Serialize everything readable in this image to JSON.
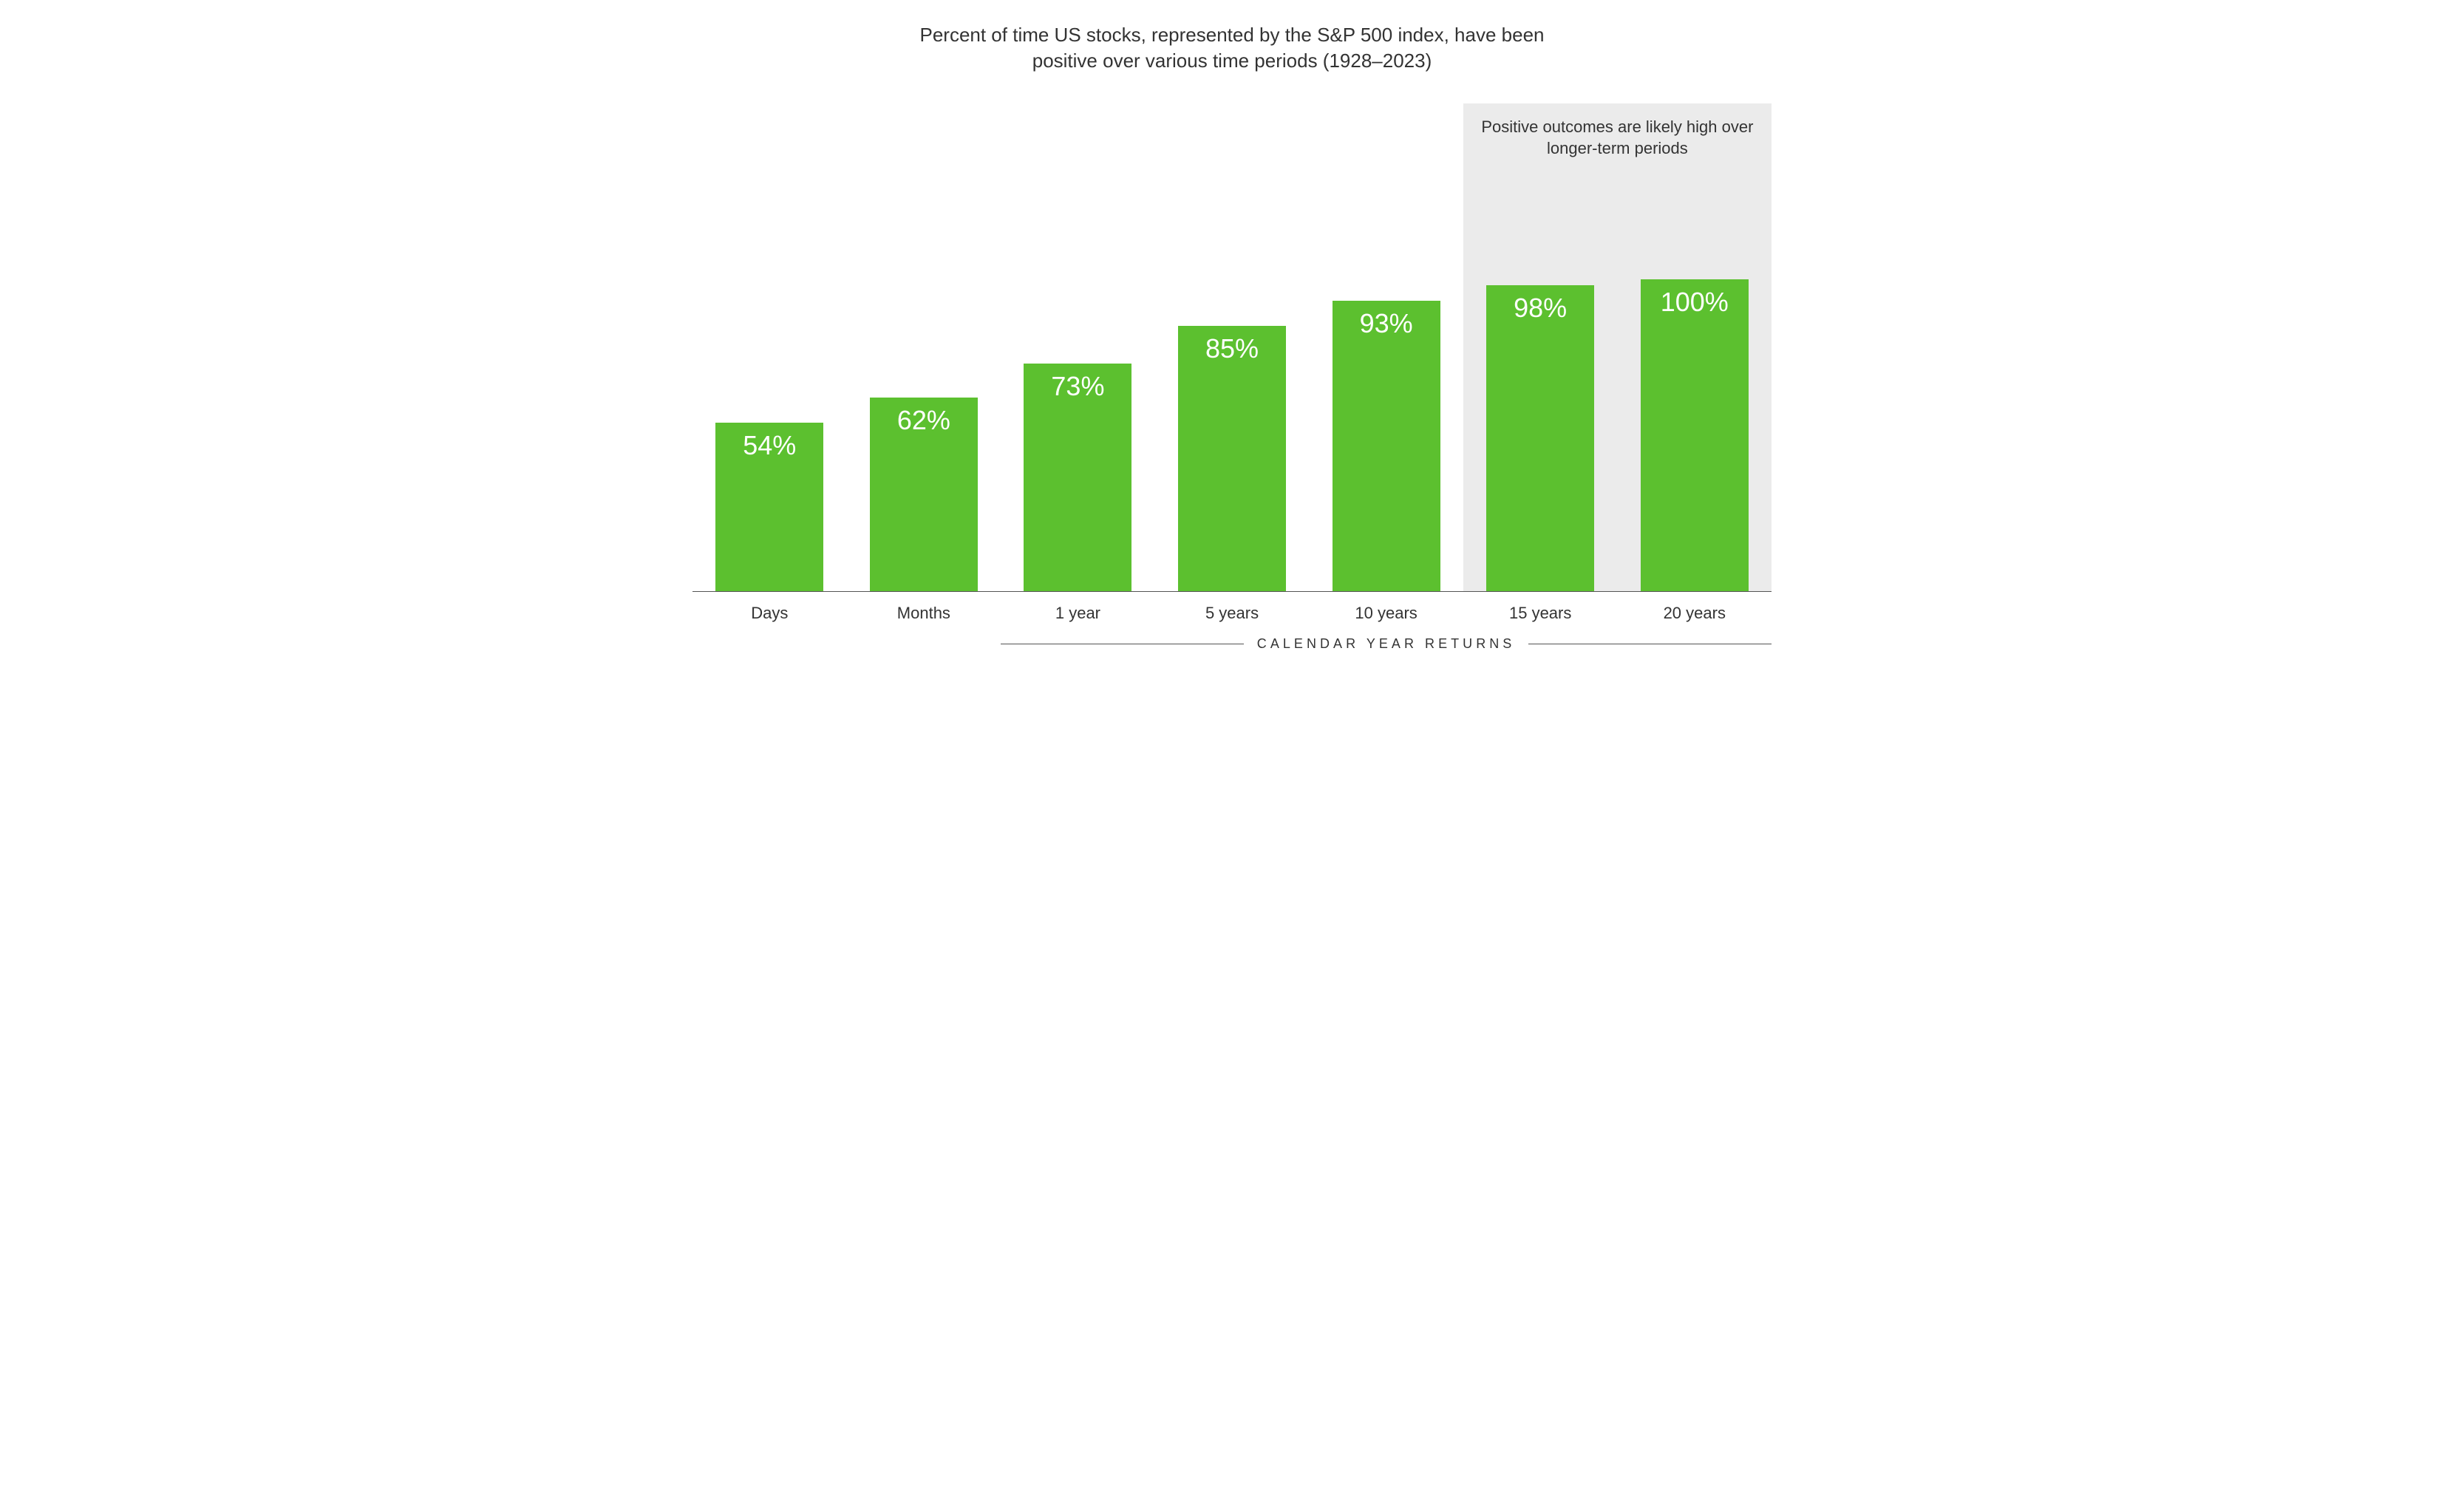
{
  "chart": {
    "type": "bar",
    "title": "Percent of time US stocks, represented by the S&P 500 index, have been positive over various time periods (1928–2023)",
    "title_fontsize": 26,
    "title_color": "#333333",
    "background_color": "#ffffff",
    "categories": [
      "Days",
      "Months",
      "1 year",
      "5 years",
      "10 years",
      "15 years",
      "20 years"
    ],
    "values": [
      54,
      62,
      73,
      85,
      93,
      98,
      100
    ],
    "value_labels": [
      "54%",
      "62%",
      "73%",
      "85%",
      "93%",
      "98%",
      "100%"
    ],
    "bar_color": "#5cc02f",
    "value_label_color": "#ffffff",
    "value_label_fontsize": 36,
    "x_label_fontsize": 22,
    "x_label_color": "#333333",
    "ylim": [
      0,
      100
    ],
    "max_bar_height_pct": 64,
    "baseline_color": "#555555",
    "bar_width_ratio": 0.7,
    "highlight": {
      "start_index": 5,
      "end_index": 6,
      "background_color": "#ebebeb",
      "annotation": "Positive outcomes are likely high over longer-term periods",
      "annotation_fontsize": 22,
      "annotation_color": "#333333"
    },
    "sub_axis": {
      "label": "CALENDAR YEAR RETURNS",
      "start_index": 2,
      "end_index": 6,
      "fontsize": 18,
      "letter_spacing_em": 0.28,
      "line_color": "#555555"
    }
  }
}
